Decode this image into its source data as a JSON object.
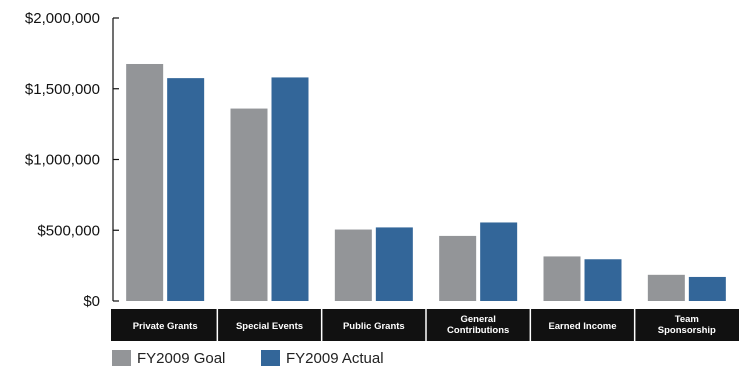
{
  "chart_data": {
    "type": "bar",
    "categories": [
      [
        "Private Grants"
      ],
      [
        "Special Events"
      ],
      [
        "Public Grants"
      ],
      [
        "General",
        "Contributions"
      ],
      [
        "Earned Income"
      ],
      [
        "Team",
        "Sponsorship"
      ]
    ],
    "series": [
      {
        "name": "FY2009 Goal",
        "color": "#939598",
        "values": [
          1675000,
          1360000,
          505000,
          460000,
          315000,
          185000
        ]
      },
      {
        "name": "FY2009 Actual",
        "color": "#336699",
        "values": [
          1575000,
          1580000,
          520000,
          555000,
          295000,
          170000
        ]
      }
    ],
    "ylim": [
      0,
      2000000
    ],
    "yticks": [
      0,
      500000,
      1000000,
      1500000,
      2000000
    ],
    "ytick_labels": [
      "$0",
      "$500,000",
      "$1,000,000",
      "$1,500,000",
      "$2,000,000"
    ],
    "legend_position": "bottom-left",
    "category_band_color": "#111111",
    "grid": false
  }
}
